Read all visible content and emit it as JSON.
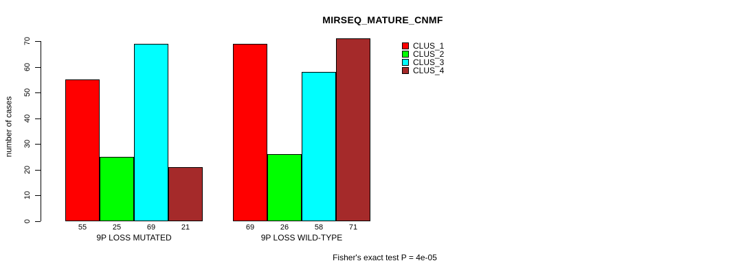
{
  "chart_data": {
    "type": "bar",
    "title": "MIRSEQ_MATURE_CNMF",
    "ylabel": "number of cases",
    "xlabel": "",
    "ylim": [
      0,
      70
    ],
    "yticks": [
      0,
      10,
      20,
      30,
      40,
      50,
      60,
      70
    ],
    "grid": false,
    "background": "#FFFFFF",
    "categories": [
      "9P LOSS MUTATED",
      "9P LOSS WILD-TYPE"
    ],
    "series": [
      {
        "name": "CLUS_1",
        "color": "#FF0000",
        "values": [
          55,
          69
        ]
      },
      {
        "name": "CLUS_2",
        "color": "#00FF00",
        "values": [
          25,
          26
        ]
      },
      {
        "name": "CLUS_3",
        "color": "#00FFFF",
        "values": [
          69,
          58
        ]
      },
      {
        "name": "CLUS_4",
        "color": "#A52A2A",
        "values": [
          21,
          71
        ]
      }
    ],
    "show_values_under_bars": true,
    "value_labels": {
      "group_1": [
        55,
        25,
        69,
        21
      ],
      "group_2": [
        69,
        26,
        58,
        71
      ]
    },
    "legend": {
      "position": "right-of-plot",
      "entries": [
        "CLUS_1",
        "CLUS_2",
        "CLUS_3",
        "CLUS_4"
      ]
    },
    "annotation": "Fisher's exact test P = 4e-05"
  }
}
